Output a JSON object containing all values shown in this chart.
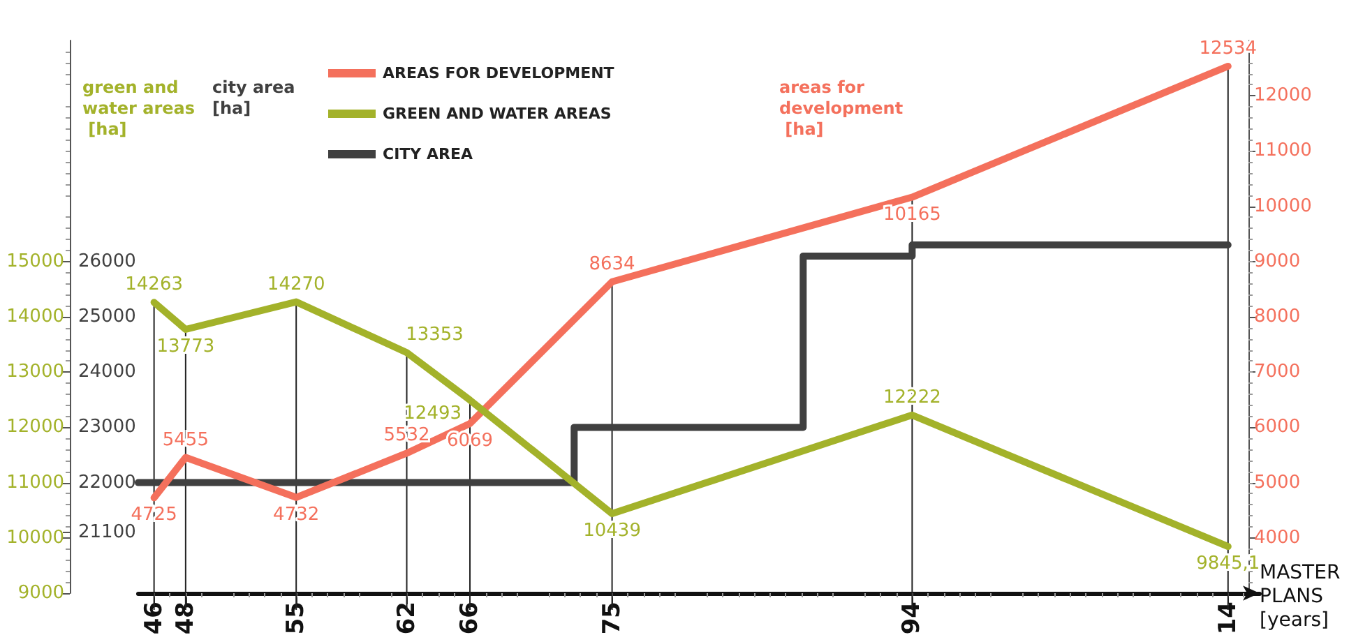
{
  "chart_data": {
    "type": "line",
    "xlabel": "MASTER PLANS [years]",
    "ylabel": "green and water areas [ha]",
    "y2label": "areas for development [ha]",
    "y3label": "city area [ha]",
    "x": [
      1946,
      1948,
      1955,
      1962,
      1966,
      1975,
      1994,
      2014
    ],
    "xlim": [
      1945,
      2016
    ],
    "xticks": [
      {
        "value": 1946,
        "label": "46"
      },
      {
        "value": 1948,
        "label": "48"
      },
      {
        "value": 1955,
        "label": "55"
      },
      {
        "value": 1962,
        "label": "62"
      },
      {
        "value": 1966,
        "label": "66"
      },
      {
        "value": 1975,
        "label": "75"
      },
      {
        "value": 1994,
        "label": "94"
      },
      {
        "value": 2014,
        "label": "14"
      }
    ],
    "ylim": [
      9000,
      19000
    ],
    "yticks": [
      9000,
      10000,
      11000,
      12000,
      13000,
      14000,
      15000
    ],
    "y2lim": [
      3000,
      13000
    ],
    "y2ticks": [
      4000,
      5000,
      6000,
      7000,
      8000,
      9000,
      10000,
      11000,
      12000
    ],
    "y3lim": [
      20000,
      30000
    ],
    "y3ticks": [
      21100,
      22000,
      23000,
      24000,
      25000,
      26000
    ],
    "series": [
      {
        "name": "AREAS FOR DEVELOPMENT",
        "color": "#f4705c",
        "axis": "y2",
        "values": [
          4725,
          5455,
          4732,
          5532,
          6069,
          8634,
          10165,
          12534
        ],
        "value_labels": [
          "4725",
          "5455",
          "4732",
          "5532",
          "6069",
          "8634",
          "10165",
          "12534"
        ]
      },
      {
        "name": "GREEN AND WATER AREAS",
        "color": "#a3b22a",
        "values": [
          14263,
          13773,
          14270,
          13353,
          12493,
          10439,
          12222,
          9845.1
        ],
        "value_labels": [
          "14263",
          "13773",
          "14270",
          "13353",
          "12493",
          "10439",
          "12222",
          "9845,1"
        ]
      },
      {
        "name": "CITY AREA",
        "color": "#404040",
        "type": "step",
        "axis": "y3",
        "x": [
          1945,
          1972.6,
          1987.1,
          1994,
          2014
        ],
        "values": [
          22000,
          23000,
          26100,
          26300,
          26300
        ]
      }
    ],
    "ref_lines": [
      {
        "axis": "x",
        "value": 1946
      },
      {
        "axis": "x",
        "value": 1948
      },
      {
        "axis": "x",
        "value": 1955
      },
      {
        "axis": "x",
        "value": 1962
      },
      {
        "axis": "x",
        "value": 1966
      },
      {
        "axis": "x",
        "value": 1975
      },
      {
        "axis": "x",
        "value": 1994
      },
      {
        "axis": "x",
        "value": 2014
      }
    ],
    "legend": "top left",
    "marker": "none",
    "grid": false
  }
}
